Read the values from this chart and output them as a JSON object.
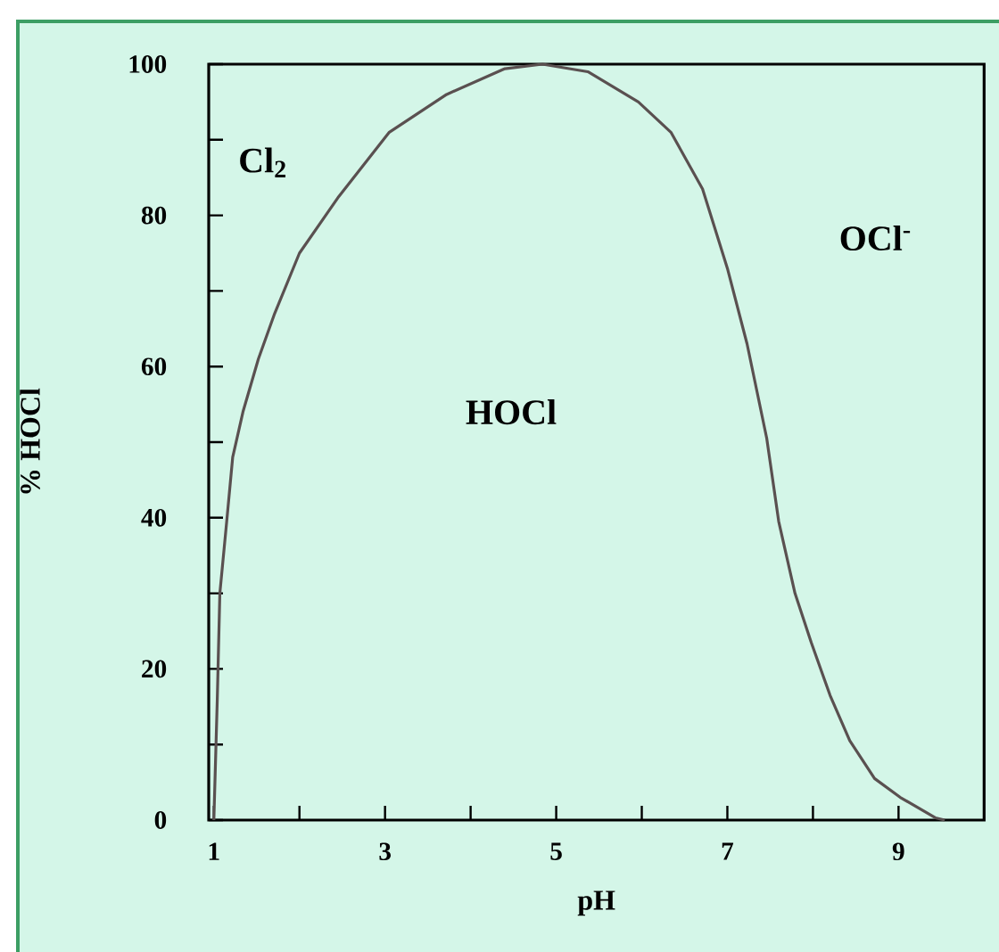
{
  "chart_data": {
    "type": "line",
    "xlabel": "pH",
    "ylabel": "% HOCl",
    "x": [
      1,
      1.04,
      1.07,
      1.15,
      1.22,
      1.34,
      1.52,
      1.71,
      2.0,
      2.46,
      3.05,
      3.72,
      4.4,
      4.84,
      5.37,
      5.96,
      6.34,
      6.71,
      7.0,
      7.23,
      7.46,
      7.6,
      7.79,
      7.98,
      8.2,
      8.43,
      8.72,
      9.02,
      9.43,
      9.54
    ],
    "values": [
      0,
      16,
      30,
      39.5,
      48,
      54,
      61,
      67,
      75,
      82.5,
      91,
      96,
      99.4,
      100,
      99,
      95,
      91,
      83.5,
      73,
      63,
      50.5,
      39.5,
      30,
      23.5,
      16.5,
      10.5,
      5.5,
      3,
      0.3,
      0
    ],
    "color": "#5a5050",
    "xlim": [
      0.94,
      10
    ],
    "ylim": [
      0,
      100
    ],
    "xticks": [
      1,
      {
        "value": 2,
        "label": null
      },
      3,
      {
        "value": 4,
        "label": null
      },
      5,
      {
        "value": 6,
        "label": null
      },
      7,
      {
        "value": 8,
        "label": null
      },
      9
    ],
    "yticks": [
      0,
      {
        "value": 10,
        "label": null
      },
      20,
      {
        "value": 30,
        "label": null
      },
      40,
      {
        "value": 50,
        "label": null
      },
      60,
      {
        "value": 70,
        "label": null
      },
      80,
      {
        "value": 90,
        "label": null
      },
      100
    ],
    "annotations": [
      "Cl$_{2}$",
      "HOCl",
      "OCl$^{-}$"
    ],
    "grid": false,
    "marker": "none",
    "line_style": "solid"
  }
}
